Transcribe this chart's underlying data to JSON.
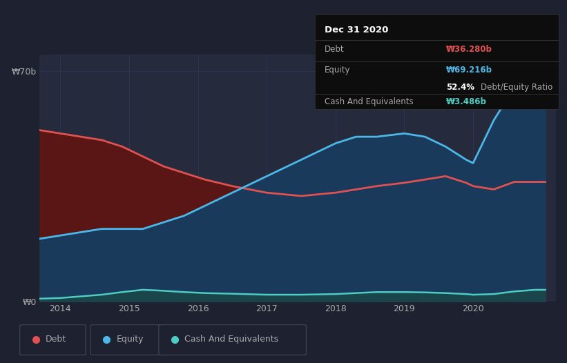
{
  "background_color": "#1e2130",
  "plot_bg_color": "#252a3d",
  "debt_color": "#e05252",
  "equity_color": "#4db8e8",
  "cash_color": "#4ecdc4",
  "debt_fill_color": "#5a1515",
  "equity_fill_color": "#1a3a5c",
  "cash_fill_color": "#1a4a45",
  "grid_color": "#2e3350",
  "text_color": "#aaaaaa",
  "white_color": "#ffffff",
  "tooltip_bg": "#0d0d0d",
  "tooltip_border": "#333333",
  "title": "Dec 31 2020",
  "debt_label": "Debt",
  "equity_label": "Equity",
  "cash_label": "Cash And Equivalents",
  "debt_value": "₩36.280b",
  "equity_value": "₩69.216b",
  "ratio_value": "52.4%",
  "ratio_label": "Debt/Equity Ratio",
  "cash_value": "₩3.486b",
  "years": [
    2013.7,
    2014.0,
    2014.3,
    2014.6,
    2014.9,
    2015.2,
    2015.5,
    2015.8,
    2016.1,
    2016.5,
    2017.0,
    2017.5,
    2018.0,
    2018.3,
    2018.6,
    2019.0,
    2019.3,
    2019.6,
    2019.9,
    2020.0,
    2020.3,
    2020.6,
    2020.9,
    2021.05
  ],
  "debt_values": [
    52,
    51,
    50,
    49,
    47,
    44,
    41,
    39,
    37,
    35,
    33,
    32,
    33,
    34,
    35,
    36,
    37,
    38,
    36,
    35,
    34,
    36.28,
    36.28,
    36.28
  ],
  "equity_values": [
    19,
    20,
    21,
    22,
    22,
    22,
    24,
    26,
    29,
    33,
    38,
    43,
    48,
    50,
    50,
    51,
    50,
    47,
    43,
    42,
    55,
    65,
    69.216,
    69.216
  ],
  "cash_values": [
    0.8,
    1.0,
    1.5,
    2.0,
    2.8,
    3.5,
    3.2,
    2.8,
    2.5,
    2.3,
    2.0,
    2.0,
    2.2,
    2.5,
    2.8,
    2.8,
    2.7,
    2.5,
    2.2,
    2.0,
    2.2,
    3.0,
    3.486,
    3.486
  ],
  "xlim": [
    2013.7,
    2021.2
  ],
  "ylim": [
    0,
    75
  ],
  "yticks": [
    0,
    70
  ],
  "ytick_labels": [
    "₩0",
    "₩70b"
  ],
  "xtick_years": [
    2014,
    2015,
    2016,
    2017,
    2018,
    2019,
    2020
  ],
  "xtick_labels": [
    "2014",
    "2015",
    "2016",
    "2017",
    "2018",
    "2019",
    "2020"
  ],
  "legend_items": [
    {
      "label": "Debt",
      "color": "#e05252"
    },
    {
      "label": "Equity",
      "color": "#4db8e8"
    },
    {
      "label": "Cash And Equivalents",
      "color": "#4ecdc4"
    }
  ]
}
